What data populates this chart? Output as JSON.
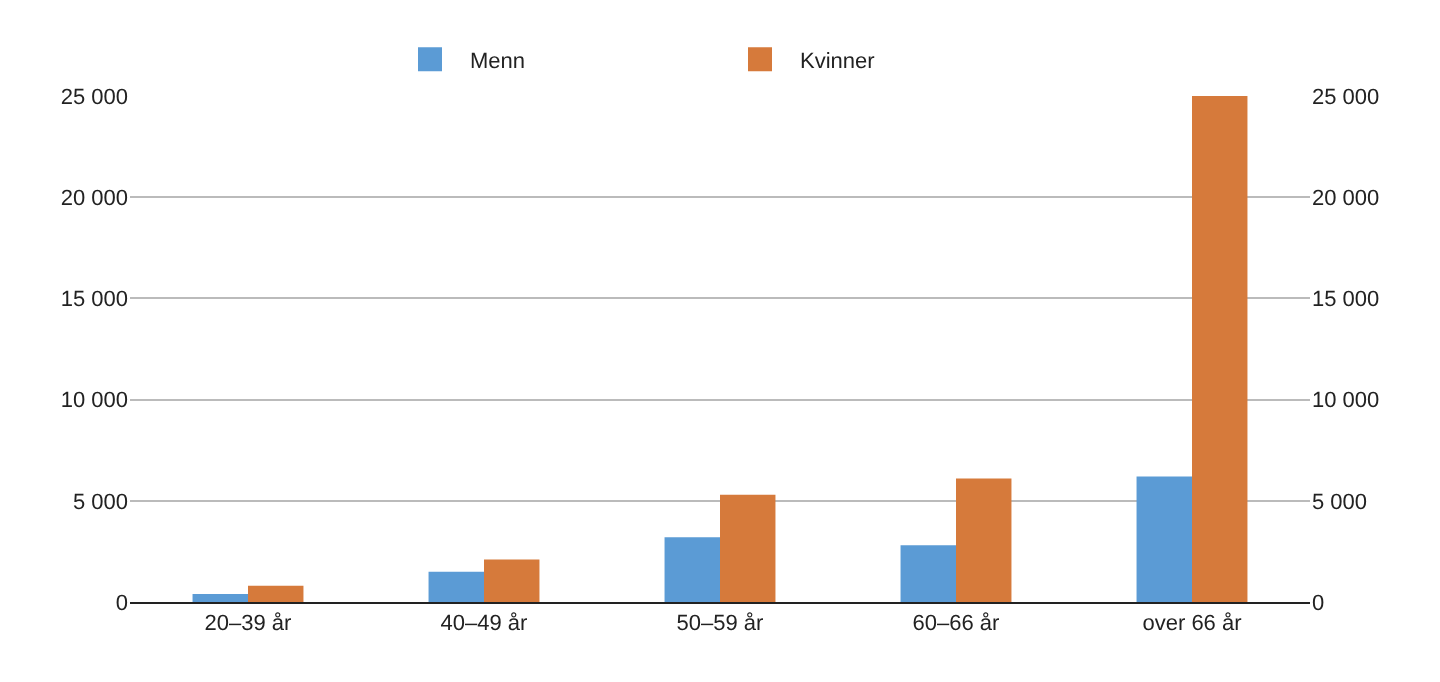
{
  "chart_data": {
    "type": "bar",
    "categories": [
      "20–39 år",
      "40–49 år",
      "50–59 år",
      "60–66 år",
      "over 66 år"
    ],
    "series": [
      {
        "name": "Menn",
        "color": "#5b9bd5",
        "values": [
          400,
          1500,
          3200,
          2800,
          6200
        ]
      },
      {
        "name": "Kvinner",
        "color": "#d67a3b",
        "values": [
          800,
          2100,
          5300,
          6100,
          25000
        ]
      }
    ],
    "ylim": [
      0,
      25000
    ],
    "yticks": [
      0,
      {
        "value": 5000,
        "label": "5 000"
      },
      {
        "value": 10000,
        "label": "10 000"
      },
      {
        "value": 15000,
        "label": "15 000"
      },
      {
        "value": 20000,
        "label": "20 000"
      },
      {
        "value": 25000,
        "label": "25 000"
      }
    ],
    "y2lim": [
      0,
      25000
    ],
    "y2ticks": [
      0,
      {
        "value": 5000,
        "label": "5 000"
      },
      {
        "value": 10000,
        "label": "10 000"
      },
      {
        "value": 15000,
        "label": "15 000"
      },
      {
        "value": 20000,
        "label": "20 000"
      },
      {
        "value": 25000,
        "label": "25 000"
      }
    ],
    "grid": "y",
    "legend": "top"
  }
}
